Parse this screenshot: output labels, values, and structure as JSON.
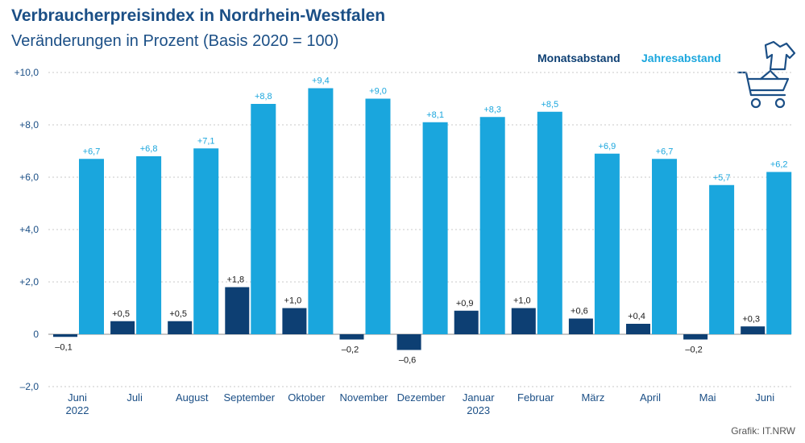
{
  "header": {
    "title": "Verbraucherpreisindex in Nordrhein-Westfalen",
    "subtitle": "Veränderungen in Prozent (Basis 2020 = 100)"
  },
  "legend": {
    "monat": "Monatsabstand",
    "jahr": "Jahresabstand"
  },
  "credit": "Grafik: IT.NRW",
  "icon": "shirt-and-shopping-cart-icon",
  "colors": {
    "monat": "#0d3f73",
    "jahr": "#1aa6dd",
    "grid": "#c8c8c8",
    "axis": "#1b4f86"
  },
  "chart_data": {
    "type": "bar",
    "categories": [
      "Juni",
      "Juli",
      "August",
      "September",
      "Oktober",
      "November",
      "Dezember",
      "Januar",
      "Februar",
      "März",
      "April",
      "Mai",
      "Juni"
    ],
    "category_sublabels": [
      "2022",
      "",
      "",
      "",
      "",
      "",
      "",
      "2023",
      "",
      "",
      "",
      "",
      ""
    ],
    "series": [
      {
        "name": "Monatsabstand",
        "values": [
          -0.1,
          0.5,
          0.5,
          1.8,
          1.0,
          -0.2,
          -0.6,
          0.9,
          1.0,
          0.6,
          0.4,
          -0.2,
          0.3
        ],
        "labels": [
          "–0,1",
          "+0,5",
          "+0,5",
          "+1,8",
          "+1,0",
          "–0,2",
          "–0,6",
          "+0,9",
          "+1,0",
          "+0,6",
          "+0,4",
          "–0,2",
          "+0,3"
        ]
      },
      {
        "name": "Jahresabstand",
        "values": [
          6.7,
          6.8,
          7.1,
          8.8,
          9.4,
          9.0,
          8.1,
          8.3,
          8.5,
          6.9,
          6.7,
          5.7,
          6.2
        ],
        "labels": [
          "+6,7",
          "+6,8",
          "+7,1",
          "+8,8",
          "+9,4",
          "+9,0",
          "+8,1",
          "+8,3",
          "+8,5",
          "+6,9",
          "+6,7",
          "+5,7",
          "+6,2"
        ]
      }
    ],
    "yticks": [
      -2,
      0,
      2,
      4,
      6,
      8,
      10
    ],
    "ytick_labels": [
      "–2,0",
      "0",
      "+2,0",
      "+4,0",
      "+6,0",
      "+8,0",
      "+10,0"
    ],
    "ylim": [
      -2,
      10
    ],
    "grid": true,
    "legend_position": "top-right"
  }
}
